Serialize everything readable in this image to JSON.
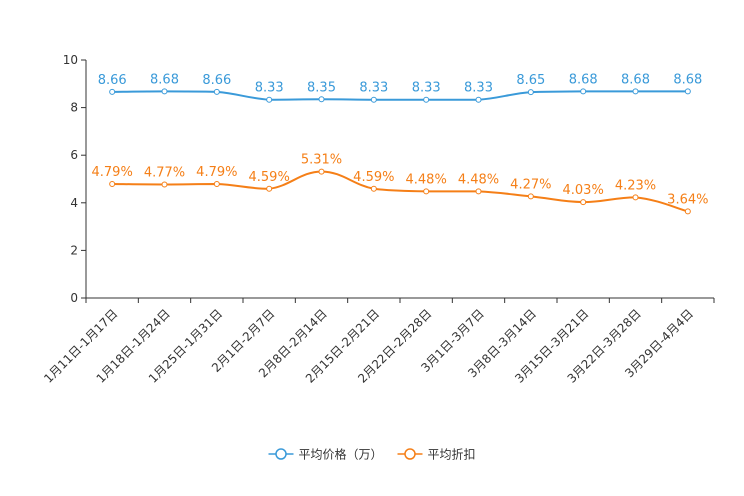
{
  "chart_data": {
    "type": "line",
    "categories": [
      "1月11日-1月17日",
      "1月18日-1月24日",
      "1月25日-1月31日",
      "2月1日-2月7日",
      "2月8日-2月14日",
      "2月15日-2月21日",
      "2月22日-2月28日",
      "3月1日-3月7日",
      "3月8日-3月14日",
      "3月15日-3月21日",
      "3月22日-3月28日",
      "3月29日-4月4日"
    ],
    "ylim": [
      0,
      10
    ],
    "yticks": [
      0,
      2,
      4,
      6,
      8,
      10
    ],
    "grid": false,
    "legend_position": "bottom-center",
    "series": [
      {
        "name": "平均价格（万）",
        "color": "#3a9ad9",
        "values": [
          8.66,
          8.68,
          8.66,
          8.33,
          8.35,
          8.33,
          8.33,
          8.33,
          8.65,
          8.68,
          8.68,
          8.68
        ],
        "labels": [
          "8.66",
          "8.68",
          "8.66",
          "8.33",
          "8.35",
          "8.33",
          "8.33",
          "8.33",
          "8.65",
          "8.68",
          "8.68",
          "8.68"
        ]
      },
      {
        "name": "平均折扣",
        "color": "#f57f17",
        "values": [
          4.79,
          4.77,
          4.79,
          4.59,
          5.31,
          4.59,
          4.48,
          4.48,
          4.27,
          4.03,
          4.23,
          3.64
        ],
        "labels": [
          "4.79%",
          "4.77%",
          "4.79%",
          "4.59%",
          "5.31%",
          "4.59%",
          "4.48%",
          "4.48%",
          "4.27%",
          "4.03%",
          "4.23%",
          "3.64%"
        ]
      }
    ]
  }
}
